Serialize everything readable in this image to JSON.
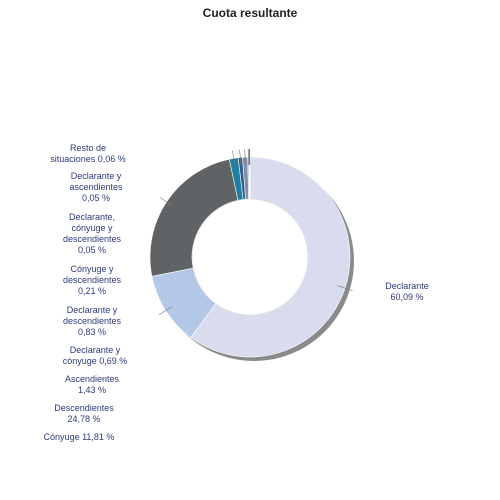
{
  "chart_data": {
    "type": "pie",
    "subtype": "donut",
    "title": "Cuota resultante",
    "legend": "none",
    "slices": [
      {
        "name": "Declarante",
        "value": 60.09,
        "label": "Declarante\n60,09 %",
        "color": "#d9dcef"
      },
      {
        "name": "Cónyuge",
        "value": 11.81,
        "label": "Cónyuge 11,81 %",
        "color": "#b3c8e6"
      },
      {
        "name": "Descendientes",
        "value": 24.78,
        "label": "Descendientes\n24,78 %",
        "color": "#5f6366"
      },
      {
        "name": "Ascendientes",
        "value": 1.43,
        "label": "Ascendientes\n1,43 %",
        "color": "#1f7fa0"
      },
      {
        "name": "Declarante y cónyuge",
        "value": 0.69,
        "label": "Declarante y\ncónyuge 0,69 %",
        "color": "#2f5f8a"
      },
      {
        "name": "Declarante y descendientes",
        "value": 0.83,
        "label": "Declarante y\ndescendientes\n0,83 %",
        "color": "#7f8fb0"
      },
      {
        "name": "Cónyuge y descendientes",
        "value": 0.21,
        "label": "Cónyuge y\ndescendientes\n0,21 %",
        "color": "#9aa3b5"
      },
      {
        "name": "Declarante, cónyuge y descendientes",
        "value": 0.05,
        "label": "Declarante,\ncónyuge y\ndescendientes\n0,05 %",
        "color": "#6d7a94"
      },
      {
        "name": "Declarante y ascendientes",
        "value": 0.05,
        "label": "Declarante y\nascendientes\n0,05 %",
        "color": "#4a5a75"
      },
      {
        "name": "Resto de situaciones",
        "value": 0.06,
        "label": "Resto de\nsituaciones 0,06 %",
        "color": "#8d8d8d"
      }
    ]
  }
}
